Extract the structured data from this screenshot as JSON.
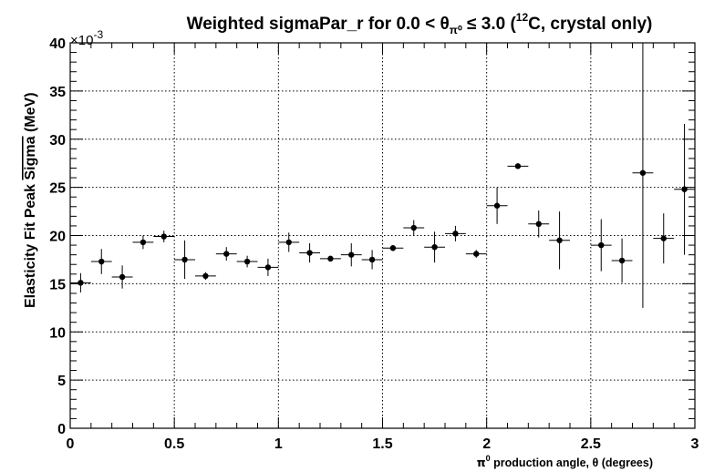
{
  "chart_data": {
    "type": "scatter",
    "title": "Weighted sigmaPar_r for 0.0 < θπ⁰ ≤ 3.0 (¹²C, crystal only)",
    "title_parts": {
      "prefix": "Weighted sigmaPar_r for 0.0 < θ",
      "sub": "π⁰",
      "middle": " ≤ 3.0 (",
      "sup": "12",
      "suffix": "C, crystal only)"
    },
    "xlabel": "π⁰ production angle, θ (degrees)",
    "xlabel_parts": {
      "sym": "π",
      "sup": "0",
      "rest": " production angle, θ (degrees)"
    },
    "ylabel": "Elasticity Fit Peak Sigma (MeV)",
    "ylabel_overline": "Sigma",
    "ylabel_prefix": "Elasticity Fit Peak ",
    "ylabel_suffix": " (MeV)",
    "y_multiplier_base": "×10",
    "y_multiplier_exp": "-3",
    "xlim": [
      0,
      3
    ],
    "ylim": [
      0,
      40
    ],
    "x_ticks": [
      0,
      0.5,
      1,
      1.5,
      2,
      2.5,
      3
    ],
    "x_tick_labels": [
      "0",
      "0.5",
      "1",
      "1.5",
      "2",
      "2.5",
      "3"
    ],
    "y_ticks": [
      0,
      5,
      10,
      15,
      20,
      25,
      30,
      35,
      40
    ],
    "y_tick_labels": [
      "0",
      "5",
      "10",
      "15",
      "20",
      "25",
      "30",
      "35",
      "40"
    ],
    "grid": true,
    "x_half_width": 0.05,
    "points": [
      {
        "x": 0.05,
        "y": 15.1,
        "err": 1.0
      },
      {
        "x": 0.15,
        "y": 17.3,
        "err": 1.3
      },
      {
        "x": 0.25,
        "y": 15.7,
        "err": 1.2
      },
      {
        "x": 0.35,
        "y": 19.3,
        "err": 0.7
      },
      {
        "x": 0.45,
        "y": 19.9,
        "err": 0.6
      },
      {
        "x": 0.55,
        "y": 17.5,
        "err": 2.0
      },
      {
        "x": 0.65,
        "y": 15.8,
        "err": 0.4
      },
      {
        "x": 0.75,
        "y": 18.1,
        "err": 0.7
      },
      {
        "x": 0.85,
        "y": 17.3,
        "err": 0.6
      },
      {
        "x": 0.95,
        "y": 16.7,
        "err": 0.9
      },
      {
        "x": 1.05,
        "y": 19.3,
        "err": 1.0
      },
      {
        "x": 1.15,
        "y": 18.2,
        "err": 1.0
      },
      {
        "x": 1.25,
        "y": 17.6,
        "err": 0.3
      },
      {
        "x": 1.35,
        "y": 18.0,
        "err": 1.2
      },
      {
        "x": 1.45,
        "y": 17.5,
        "err": 1.0
      },
      {
        "x": 1.55,
        "y": 18.7,
        "err": 0.3
      },
      {
        "x": 1.65,
        "y": 20.8,
        "err": 0.8
      },
      {
        "x": 1.75,
        "y": 18.8,
        "err": 1.6
      },
      {
        "x": 1.85,
        "y": 20.2,
        "err": 0.8
      },
      {
        "x": 1.95,
        "y": 18.1,
        "err": 0.4
      },
      {
        "x": 2.05,
        "y": 23.1,
        "err": 1.9
      },
      {
        "x": 2.15,
        "y": 27.2,
        "err": 0.2
      },
      {
        "x": 2.25,
        "y": 21.2,
        "err": 1.4
      },
      {
        "x": 2.35,
        "y": 19.5,
        "err": 3.0
      },
      {
        "x": 2.55,
        "y": 19.0,
        "err": 2.7
      },
      {
        "x": 2.65,
        "y": 17.4,
        "err": 2.3
      },
      {
        "x": 2.75,
        "y": 26.5,
        "err": 14.0
      },
      {
        "x": 2.85,
        "y": 19.7,
        "err": 2.6
      },
      {
        "x": 2.95,
        "y": 24.8,
        "err": 6.8
      }
    ]
  }
}
